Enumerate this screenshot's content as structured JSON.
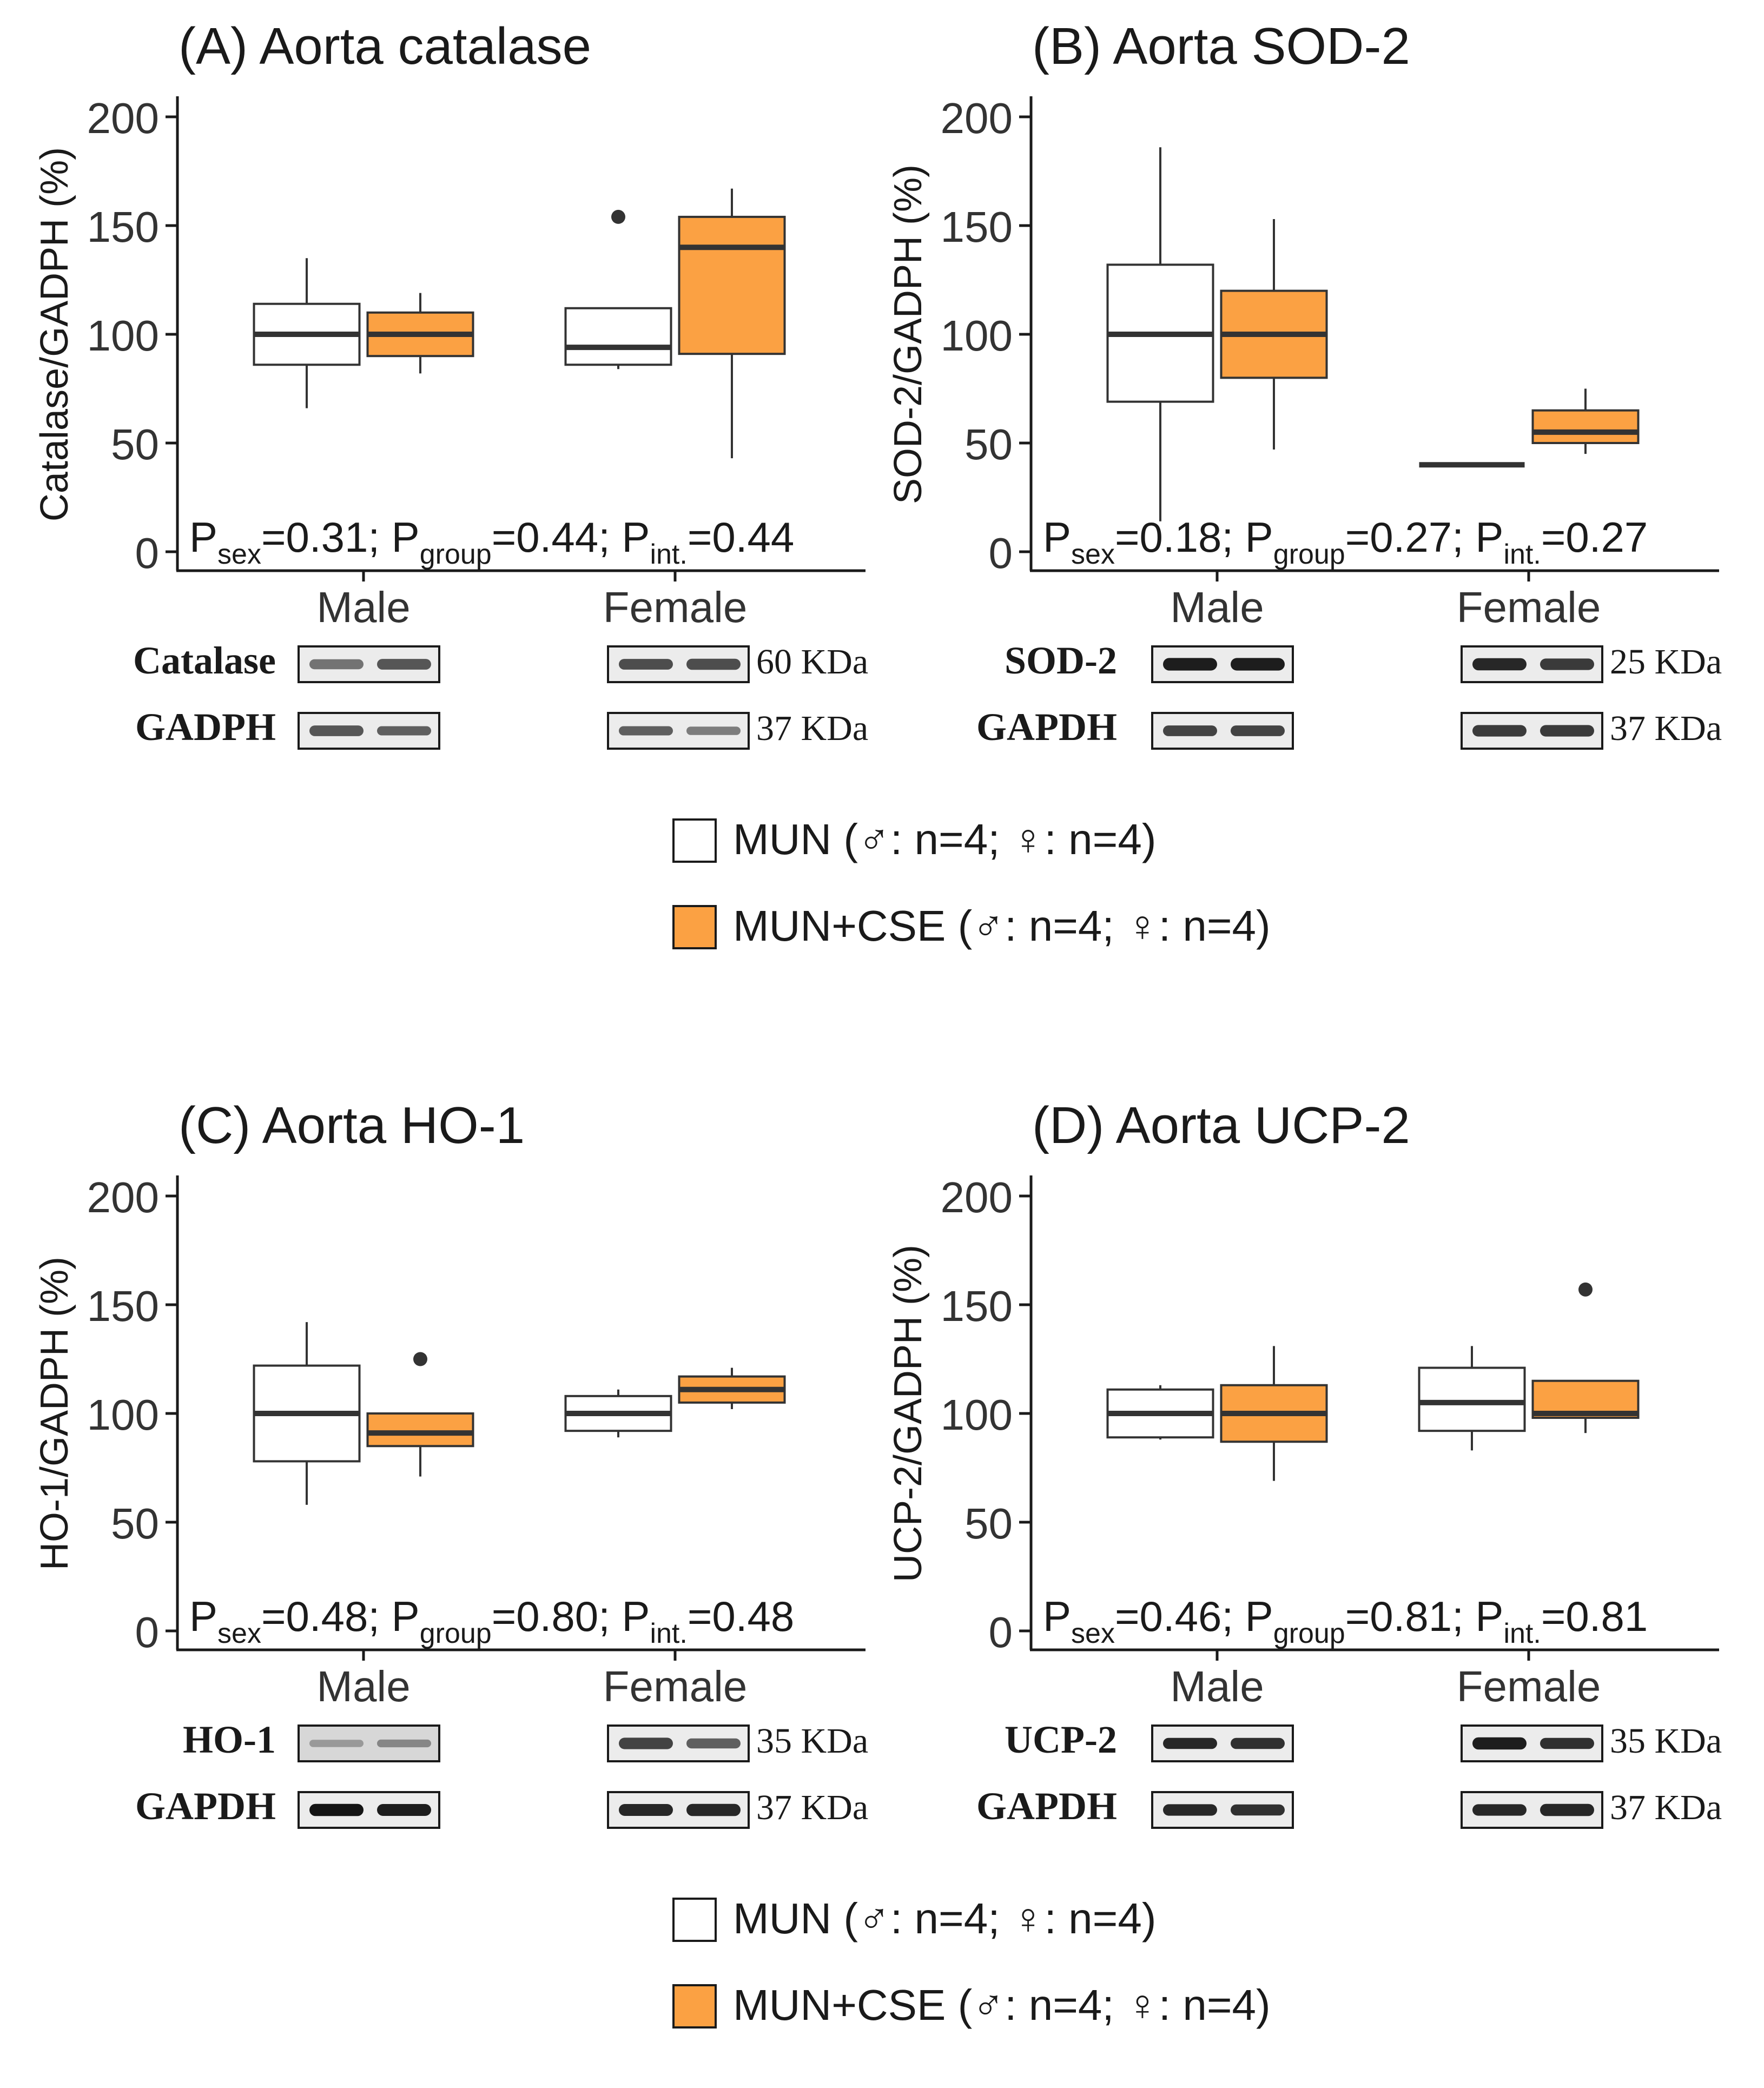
{
  "figure": {
    "box_fill_colors": {
      "MUN": "#ffffff",
      "MUN+CSE": "#fba143"
    },
    "band_color": "#1a1a1a",
    "legends": [
      {
        "items": [
          {
            "series": "MUN",
            "label": "MUN (♂: n=4; ♀: n=4)"
          },
          {
            "series": "MUN+CSE",
            "label": "MUN+CSE (♂: n=4; ♀: n=4)"
          }
        ]
      },
      {
        "items": [
          {
            "series": "MUN",
            "label": "MUN (♂: n=4; ♀: n=4)"
          },
          {
            "series": "MUN+CSE",
            "label": "MUN+CSE (♂: n=4; ♀: n=4)"
          }
        ]
      }
    ]
  },
  "chart_data": [
    {
      "type": "boxplot",
      "title": "(A) Aorta catalase",
      "ylabel": "Catalase/GADPH (%)",
      "ylim": [
        0,
        200
      ],
      "yticks": [
        0,
        50,
        100,
        150,
        200
      ],
      "categories": [
        "Male",
        "Female"
      ],
      "series": [
        {
          "name": "MUN",
          "boxes": [
            {
              "min": 66,
              "q1": 86,
              "median": 100,
              "q3": 114,
              "max": 135,
              "outliers": []
            },
            {
              "min": 84,
              "q1": 86,
              "median": 94,
              "q3": 112,
              "max": 112,
              "outliers": [
                154
              ]
            }
          ]
        },
        {
          "name": "MUN+CSE",
          "boxes": [
            {
              "min": 82,
              "q1": 90,
              "median": 100,
              "q3": 110,
              "max": 119,
              "outliers": []
            },
            {
              "min": 43,
              "q1": 91,
              "median": 140,
              "q3": 154,
              "max": 167,
              "outliers": []
            }
          ]
        }
      ],
      "stats": {
        "p_sex": "0.31",
        "p_group": "0.44",
        "p_int": "0.44"
      },
      "blots": [
        {
          "label": "Catalase",
          "size": "60 KDa",
          "male": [
            [
              0.45,
              0.6
            ],
            [
              0.6,
              0.7
            ]
          ],
          "female": [
            [
              0.65,
              0.7
            ],
            [
              0.65,
              0.75
            ]
          ]
        },
        {
          "label": "GADPH",
          "size": "37 KDa",
          "male": [
            [
              0.6,
              0.7
            ],
            [
              0.55,
              0.5
            ]
          ],
          "female": [
            [
              0.55,
              0.5
            ],
            [
              0.4,
              0.4
            ]
          ]
        }
      ]
    },
    {
      "type": "boxplot",
      "title": "(B) Aorta SOD-2",
      "ylabel": "SOD-2/GADPH (%)",
      "ylim": [
        0,
        200
      ],
      "yticks": [
        0,
        50,
        100,
        150,
        200
      ],
      "categories": [
        "Male",
        "Female"
      ],
      "series": [
        {
          "name": "MUN",
          "boxes": [
            {
              "min": 14,
              "q1": 69,
              "median": 100,
              "q3": 132,
              "max": 186,
              "outliers": []
            },
            {
              "min": 40,
              "q1": 40,
              "median": 40,
              "q3": 40,
              "max": 40,
              "outliers": []
            }
          ]
        },
        {
          "name": "MUN+CSE",
          "boxes": [
            {
              "min": 47,
              "q1": 80,
              "median": 100,
              "q3": 120,
              "max": 153,
              "outliers": []
            },
            {
              "min": 45,
              "q1": 50,
              "median": 55,
              "q3": 65,
              "max": 75,
              "outliers": []
            }
          ]
        }
      ],
      "stats": {
        "p_sex": "0.18",
        "p_group": "0.27",
        "p_int": "0.27"
      },
      "blots": [
        {
          "label": "SOD-2",
          "size": "25 KDa",
          "male": [
            [
              0.9,
              0.95
            ],
            [
              0.9,
              0.95
            ]
          ],
          "female": [
            [
              0.85,
              0.9
            ],
            [
              0.75,
              0.8
            ]
          ]
        },
        {
          "label": "GAPDH",
          "size": "37 KDa",
          "male": [
            [
              0.7,
              0.7
            ],
            [
              0.7,
              0.7
            ]
          ],
          "female": [
            [
              0.75,
              0.8
            ],
            [
              0.75,
              0.8
            ]
          ]
        }
      ]
    },
    {
      "type": "boxplot",
      "title": "(C) Aorta HO-1",
      "ylabel": "HO-1/GADPH (%)",
      "ylim": [
        0,
        200
      ],
      "yticks": [
        0,
        50,
        100,
        150,
        200
      ],
      "categories": [
        "Male",
        "Female"
      ],
      "series": [
        {
          "name": "MUN",
          "boxes": [
            {
              "min": 58,
              "q1": 78,
              "median": 100,
              "q3": 122,
              "max": 142,
              "outliers": []
            },
            {
              "min": 89,
              "q1": 92,
              "median": 100,
              "q3": 108,
              "max": 111,
              "outliers": []
            }
          ]
        },
        {
          "name": "MUN+CSE",
          "boxes": [
            {
              "min": 71,
              "q1": 85,
              "median": 91,
              "q3": 100,
              "max": 100,
              "outliers": [
                125
              ]
            },
            {
              "min": 102,
              "q1": 105,
              "median": 111,
              "q3": 117,
              "max": 121,
              "outliers": []
            }
          ]
        }
      ],
      "stats": {
        "p_sex": "0.48",
        "p_group": "0.80",
        "p_int": "0.48"
      },
      "blots": [
        {
          "label": "HO-1",
          "size": "35 KDa",
          "male": [
            [
              0.25,
              0.25
            ],
            [
              0.35,
              0.3
            ]
          ],
          "female": [
            [
              0.7,
              0.8
            ],
            [
              0.55,
              0.6
            ]
          ]
        },
        {
          "label": "GAPDH",
          "size": "37 KDa",
          "male": [
            [
              0.95,
              0.9
            ],
            [
              0.9,
              0.85
            ]
          ],
          "female": [
            [
              0.85,
              0.85
            ],
            [
              0.85,
              0.9
            ]
          ]
        }
      ]
    },
    {
      "type": "boxplot",
      "title": "(D) Aorta UCP-2",
      "ylabel": "UCP-2/GADPH (%)",
      "ylim": [
        0,
        200
      ],
      "yticks": [
        0,
        50,
        100,
        150,
        200
      ],
      "categories": [
        "Male",
        "Female"
      ],
      "series": [
        {
          "name": "MUN",
          "boxes": [
            {
              "min": 88,
              "q1": 89,
              "median": 100,
              "q3": 111,
              "max": 113,
              "outliers": []
            },
            {
              "min": 83,
              "q1": 92,
              "median": 105,
              "q3": 121,
              "max": 131,
              "outliers": []
            }
          ]
        },
        {
          "name": "MUN+CSE",
          "boxes": [
            {
              "min": 69,
              "q1": 87,
              "median": 100,
              "q3": 113,
              "max": 131,
              "outliers": []
            },
            {
              "min": 91,
              "q1": 98,
              "median": 100,
              "q3": 115,
              "max": 115,
              "outliers": [
                157
              ]
            }
          ]
        }
      ],
      "stats": {
        "p_sex": "0.46",
        "p_group": "0.81",
        "p_int": "0.81"
      },
      "blots": [
        {
          "label": "UCP-2",
          "size": "35 KDa",
          "male": [
            [
              0.85,
              0.75
            ],
            [
              0.8,
              0.75
            ]
          ],
          "female": [
            [
              0.9,
              0.9
            ],
            [
              0.8,
              0.75
            ]
          ]
        },
        {
          "label": "GAPDH",
          "size": "37 KDa",
          "male": [
            [
              0.85,
              0.8
            ],
            [
              0.8,
              0.75
            ]
          ],
          "female": [
            [
              0.85,
              0.8
            ],
            [
              0.85,
              0.9
            ]
          ]
        }
      ]
    }
  ]
}
